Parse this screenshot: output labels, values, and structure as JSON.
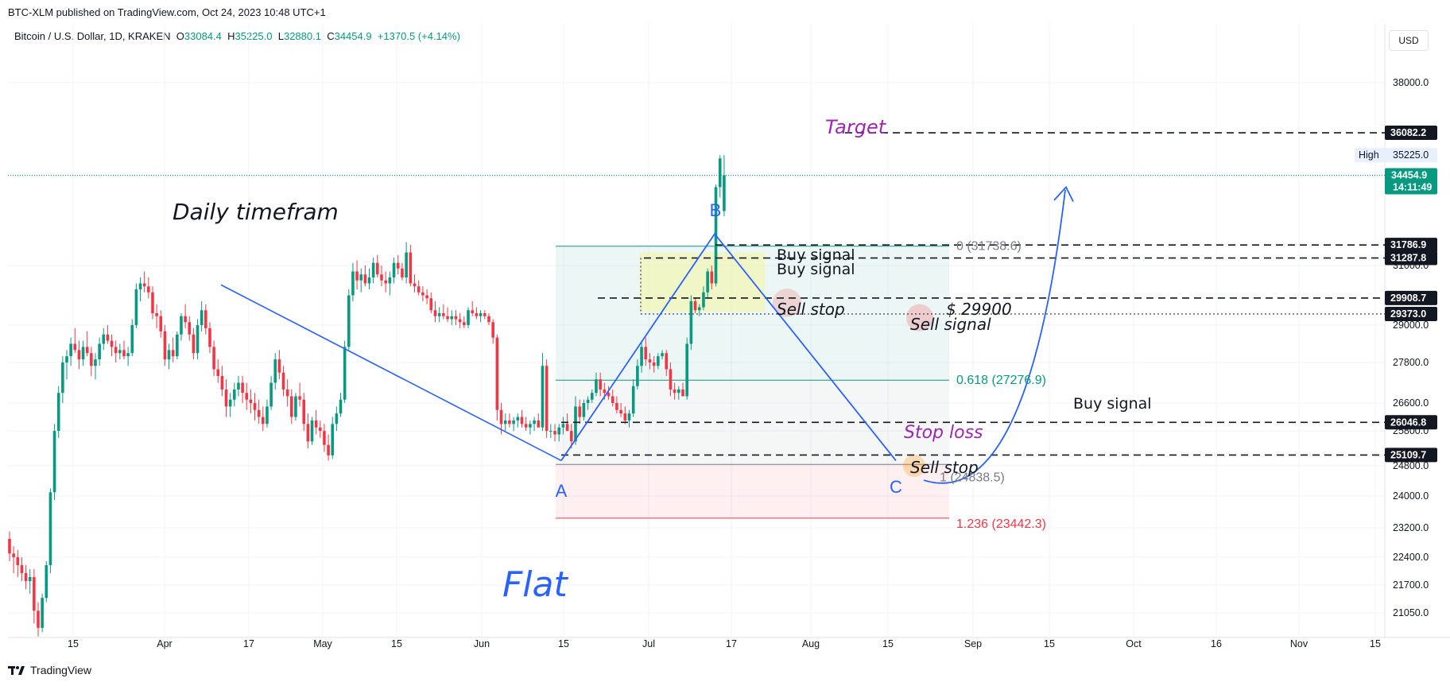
{
  "header": {
    "published": "BTC-XLM published on TradingView.com, Oct 24, 2023 10:48 UTC+1",
    "symbol": "Bitcoin / U.S. Dollar, 1D, KRAKEN",
    "open_label": "O",
    "open": "33084.4",
    "high_label": "H",
    "high": "35225.0",
    "low_label": "L",
    "low": "32880.1",
    "close_label": "C",
    "close": "34454.9",
    "change": "+1370.5 (+4.14%)",
    "currency": "USD"
  },
  "footer": {
    "brand": "TradingView"
  },
  "colors": {
    "up": "#089981",
    "down": "#f23645",
    "annotation": "#2962ff",
    "target": "#9c27b0"
  },
  "chart_data": {
    "type": "candlestick",
    "ylim": [
      20600,
      39200
    ],
    "y_ticks": [
      "38000.0",
      "31000.0",
      "29000.0",
      "27800.0",
      "26600.0",
      "25800.0",
      "24800.0",
      "24000.0",
      "23200.0",
      "22400.0",
      "21700.0",
      "21050.0"
    ],
    "x_ticks": [
      "15",
      "Apr",
      "17",
      "May",
      "15",
      "Jun",
      "15",
      "Jul",
      "17",
      "Aug",
      "15",
      "Sep",
      "15",
      "Oct",
      "16",
      "Nov",
      "15"
    ],
    "price_tags": [
      {
        "label": "36082.2",
        "value": 36082.2
      },
      {
        "label": "31786.9",
        "value": 31786.9
      },
      {
        "label": "31287.8",
        "value": 31287.8
      },
      {
        "label": "29908.7",
        "value": 29908.7
      },
      {
        "label": "29373.0",
        "value": 29373.0
      },
      {
        "label": "26046.8",
        "value": 26046.8
      },
      {
        "label": "25109.7",
        "value": 25109.7
      }
    ],
    "last_price": {
      "label": "34454.9",
      "countdown": "14:11:49",
      "value": 34454.9
    },
    "high_marker": {
      "label": "High",
      "value_label": "35225.0",
      "value": 35225.0
    },
    "fib_levels": [
      {
        "label": "0 (31738.6)",
        "value": 31738.6
      },
      {
        "label": "0.618 (27276.9)",
        "value": 27276.9
      },
      {
        "label": "1 (24838.5)",
        "value": 24838.5
      },
      {
        "label": "1.236 (23442.3)",
        "value": 23442.3
      }
    ],
    "points": [
      {
        "label": "A",
        "value": 24950
      },
      {
        "label": "B",
        "value": 32210
      },
      {
        "label": "C",
        "value": 24950
      }
    ],
    "annotations": {
      "timeframe": "Daily timefram",
      "pattern": "Flat",
      "target": "Target",
      "buy_signal_1": "Buy signal",
      "buy_signal_2": "Buy signal",
      "buy_signal_3": "Buy signal",
      "sell_stop_1": "Sell stop",
      "sell_stop_2": "Sell stop",
      "sell_price": "$ 29900",
      "sell_signal": "Sell signal",
      "stop_loss": "Stop loss"
    },
    "candles_ohlc": [
      [
        22900,
        23100,
        22300,
        22500
      ],
      [
        22500,
        22700,
        22000,
        22400
      ],
      [
        22400,
        22600,
        21900,
        22200
      ],
      [
        22200,
        22400,
        21800,
        22000
      ],
      [
        22000,
        22200,
        21600,
        21800
      ],
      [
        21800,
        22100,
        21500,
        21900
      ],
      [
        21900,
        22100,
        20800,
        21100
      ],
      [
        21100,
        21300,
        20500,
        20700
      ],
      [
        20700,
        21500,
        20600,
        21400
      ],
      [
        21400,
        22300,
        21300,
        22200
      ],
      [
        22200,
        24200,
        22000,
        24100
      ],
      [
        24100,
        26000,
        23900,
        25800
      ],
      [
        25800,
        27100,
        25600,
        26900
      ],
      [
        26900,
        28000,
        26600,
        27800
      ],
      [
        27800,
        28200,
        27300,
        28000
      ],
      [
        28000,
        28600,
        27700,
        28400
      ],
      [
        28400,
        28900,
        28100,
        28200
      ],
      [
        28200,
        28500,
        27600,
        27900
      ],
      [
        27900,
        28500,
        27700,
        28300
      ],
      [
        28300,
        28800,
        28000,
        28100
      ],
      [
        28100,
        28300,
        27400,
        27700
      ],
      [
        27700,
        28100,
        27300,
        27900
      ],
      [
        27900,
        28600,
        27700,
        28400
      ],
      [
        28400,
        28900,
        28200,
        28700
      ],
      [
        28700,
        29000,
        28400,
        28500
      ],
      [
        28500,
        28700,
        28000,
        28300
      ],
      [
        28300,
        28500,
        27800,
        28100
      ],
      [
        28100,
        28400,
        27900,
        28200
      ],
      [
        28200,
        28500,
        27900,
        28000
      ],
      [
        28000,
        28300,
        27700,
        28100
      ],
      [
        28100,
        29200,
        28000,
        29000
      ],
      [
        29000,
        30400,
        28900,
        30200
      ],
      [
        30200,
        30600,
        29800,
        30400
      ],
      [
        30400,
        30800,
        30100,
        30300
      ],
      [
        30300,
        30600,
        29900,
        30100
      ],
      [
        30100,
        30300,
        29200,
        29400
      ],
      [
        29400,
        29700,
        28900,
        29300
      ],
      [
        29300,
        29500,
        28600,
        28800
      ],
      [
        28800,
        29000,
        27700,
        27900
      ],
      [
        27900,
        28400,
        27600,
        28200
      ],
      [
        28200,
        28600,
        27800,
        28000
      ],
      [
        28000,
        28800,
        27900,
        28700
      ],
      [
        28700,
        29400,
        28500,
        29300
      ],
      [
        29300,
        29700,
        28900,
        29100
      ],
      [
        29100,
        29300,
        28500,
        28700
      ],
      [
        28700,
        28900,
        27900,
        28100
      ],
      [
        28100,
        29200,
        27900,
        29000
      ],
      [
        29000,
        29800,
        28800,
        29500
      ],
      [
        29500,
        29700,
        28700,
        28900
      ],
      [
        28900,
        29100,
        28100,
        28300
      ],
      [
        28300,
        28500,
        27400,
        27600
      ],
      [
        27600,
        27900,
        27200,
        27400
      ],
      [
        27400,
        27700,
        26800,
        27000
      ],
      [
        27000,
        27300,
        26200,
        26500
      ],
      [
        26500,
        26900,
        26200,
        26700
      ],
      [
        26700,
        27200,
        26500,
        27000
      ],
      [
        27000,
        27400,
        26800,
        27200
      ],
      [
        27200,
        27400,
        26600,
        26900
      ],
      [
        26900,
        27200,
        26400,
        26700
      ],
      [
        26700,
        27000,
        26300,
        26600
      ],
      [
        26600,
        26900,
        26100,
        26400
      ],
      [
        26400,
        26700,
        26000,
        26200
      ],
      [
        26200,
        26500,
        25800,
        26000
      ],
      [
        26000,
        26700,
        25900,
        26500
      ],
      [
        26500,
        27400,
        26400,
        27200
      ],
      [
        27200,
        28100,
        27000,
        27900
      ],
      [
        27900,
        28200,
        27300,
        27500
      ],
      [
        27500,
        27700,
        26800,
        27000
      ],
      [
        27000,
        27300,
        26500,
        26800
      ],
      [
        26800,
        27000,
        26000,
        26200
      ],
      [
        26200,
        26900,
        26100,
        26800
      ],
      [
        26800,
        27200,
        26500,
        26700
      ],
      [
        26700,
        26900,
        25800,
        26000
      ],
      [
        26000,
        26300,
        25300,
        25500
      ],
      [
        25500,
        26200,
        25400,
        26100
      ],
      [
        26100,
        26400,
        25700,
        25900
      ],
      [
        25900,
        26100,
        25600,
        25800
      ],
      [
        25800,
        26000,
        25200,
        25400
      ],
      [
        25400,
        25700,
        24950,
        25100
      ],
      [
        25100,
        26200,
        25000,
        26000
      ],
      [
        26000,
        26500,
        25800,
        26300
      ],
      [
        26300,
        26900,
        26200,
        26700
      ],
      [
        26700,
        28500,
        26600,
        28300
      ],
      [
        28300,
        30200,
        28200,
        30000
      ],
      [
        30000,
        31100,
        29800,
        30800
      ],
      [
        30800,
        31200,
        30200,
        30500
      ],
      [
        30500,
        30900,
        30100,
        30700
      ],
      [
        30700,
        31000,
        30300,
        30400
      ],
      [
        30400,
        30900,
        30200,
        30600
      ],
      [
        30600,
        31300,
        30400,
        31100
      ],
      [
        31100,
        31400,
        30600,
        30700
      ],
      [
        30700,
        31000,
        30300,
        30500
      ],
      [
        30500,
        30800,
        30100,
        30400
      ],
      [
        30400,
        30800,
        30000,
        30600
      ],
      [
        30600,
        31300,
        30400,
        31100
      ],
      [
        31100,
        31400,
        30700,
        30900
      ],
      [
        30900,
        31100,
        30500,
        30600
      ],
      [
        30600,
        31900,
        30400,
        31500
      ],
      [
        31500,
        31800,
        30300,
        30400
      ],
      [
        30400,
        30700,
        30100,
        30300
      ],
      [
        30300,
        30500,
        30000,
        30100
      ],
      [
        30100,
        30300,
        29800,
        30000
      ],
      [
        30000,
        30200,
        29700,
        29900
      ],
      [
        29900,
        30100,
        29400,
        29500
      ],
      [
        29500,
        29800,
        29100,
        29300
      ],
      [
        29300,
        29600,
        29100,
        29400
      ],
      [
        29400,
        29700,
        29200,
        29300
      ],
      [
        29300,
        29600,
        29100,
        29200
      ],
      [
        29200,
        29500,
        29000,
        29300
      ],
      [
        29300,
        29500,
        29000,
        29200
      ],
      [
        29200,
        29400,
        28900,
        29100
      ],
      [
        29100,
        29300,
        28900,
        29000
      ],
      [
        29000,
        29600,
        28900,
        29500
      ],
      [
        29500,
        29800,
        29300,
        29400
      ],
      [
        29400,
        29600,
        29200,
        29300
      ],
      [
        29300,
        29500,
        29100,
        29400
      ],
      [
        29400,
        29500,
        29200,
        29300
      ],
      [
        29300,
        29400,
        29000,
        29100
      ],
      [
        29100,
        29200,
        28400,
        28600
      ],
      [
        28600,
        28700,
        26100,
        26400
      ],
      [
        26400,
        26600,
        25700,
        26000
      ],
      [
        26000,
        26300,
        25800,
        26100
      ],
      [
        26100,
        26300,
        25900,
        26000
      ],
      [
        26000,
        26200,
        25800,
        26100
      ],
      [
        26100,
        26300,
        25900,
        26200
      ],
      [
        26200,
        26400,
        25900,
        26000
      ],
      [
        26000,
        26200,
        25800,
        25900
      ],
      [
        25900,
        26100,
        25700,
        26000
      ],
      [
        26000,
        26200,
        25800,
        26100
      ],
      [
        26100,
        26300,
        25900,
        25900
      ],
      [
        25900,
        28100,
        25800,
        27700
      ],
      [
        27700,
        27900,
        25600,
        25800
      ],
      [
        25800,
        26000,
        25600,
        25800
      ],
      [
        25800,
        26000,
        25500,
        25700
      ],
      [
        25700,
        26000,
        25500,
        25900
      ],
      [
        25900,
        26200,
        25700,
        26000
      ],
      [
        26000,
        26300,
        25800,
        25800
      ],
      [
        25800,
        26000,
        25300,
        25500
      ],
      [
        25500,
        26800,
        25400,
        26500
      ],
      [
        26500,
        26700,
        26000,
        26200
      ],
      [
        26200,
        26700,
        26100,
        26600
      ],
      [
        26600,
        26800,
        26400,
        26700
      ],
      [
        26700,
        27000,
        26600,
        26900
      ],
      [
        26900,
        27500,
        26800,
        27300
      ],
      [
        27300,
        27500,
        26800,
        27000
      ],
      [
        27000,
        27200,
        26700,
        26900
      ],
      [
        26900,
        27100,
        26700,
        26800
      ],
      [
        26800,
        27000,
        26500,
        26600
      ],
      [
        26600,
        26800,
        26300,
        26400
      ],
      [
        26400,
        26600,
        26200,
        26300
      ],
      [
        26300,
        26500,
        26000,
        26100
      ],
      [
        26100,
        26400,
        25900,
        26300
      ],
      [
        26300,
        27300,
        26200,
        27100
      ],
      [
        27100,
        27900,
        27000,
        27700
      ],
      [
        27700,
        28500,
        27500,
        28300
      ],
      [
        28300,
        28600,
        27700,
        27900
      ],
      [
        27900,
        28100,
        27600,
        27800
      ],
      [
        27800,
        28000,
        27500,
        27700
      ],
      [
        27700,
        28100,
        27600,
        28000
      ],
      [
        28000,
        28200,
        27900,
        28100
      ],
      [
        28100,
        28200,
        27400,
        27600
      ],
      [
        27600,
        27800,
        26800,
        27000
      ],
      [
        27000,
        27200,
        26700,
        26900
      ],
      [
        26900,
        27100,
        26700,
        27000
      ],
      [
        27000,
        27200,
        26800,
        26800
      ],
      [
        26800,
        28600,
        26700,
        28400
      ],
      [
        28400,
        30000,
        28200,
        29800
      ],
      [
        29800,
        29900,
        29400,
        29500
      ],
      [
        29500,
        29700,
        29300,
        29600
      ],
      [
        29600,
        30300,
        29500,
        30100
      ],
      [
        30100,
        30900,
        29900,
        30800
      ],
      [
        30800,
        31000,
        30200,
        30400
      ],
      [
        30400,
        34100,
        30300,
        34000
      ],
      [
        34000,
        35225,
        33600,
        35100
      ],
      [
        33084.4,
        35225,
        32880.1,
        34454.9
      ]
    ]
  }
}
